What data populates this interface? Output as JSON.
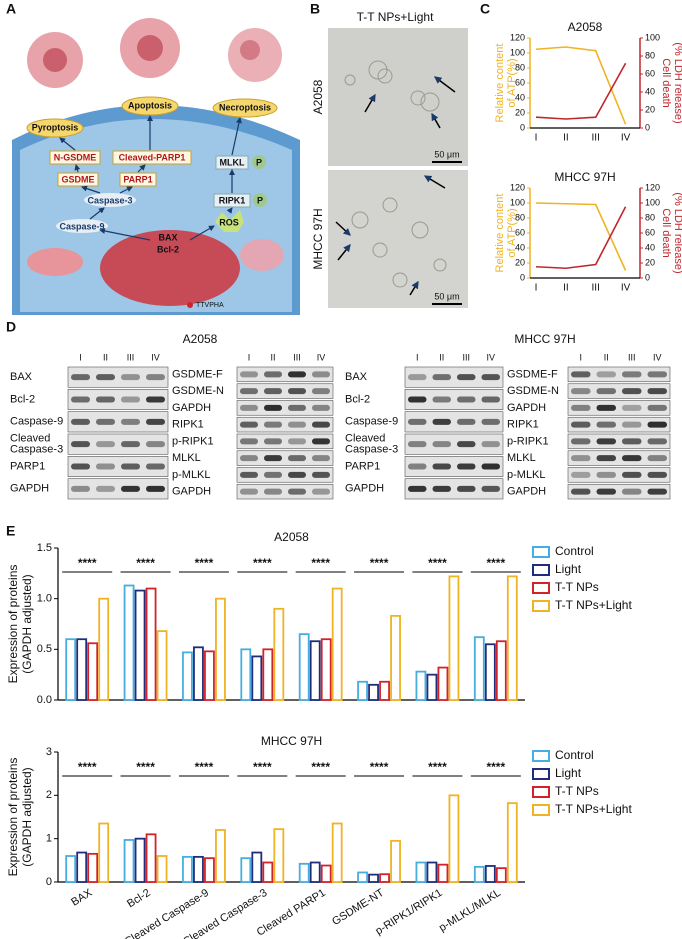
{
  "panel_labels": [
    "A",
    "B",
    "C",
    "D",
    "E"
  ],
  "diagram": {
    "outcomes": [
      "Pyroptosis",
      "Apoptosis",
      "Necroptosis"
    ],
    "nodes": [
      "N-GSDME",
      "Cleaved-PARP1",
      "MLKL",
      "P",
      "GSDME",
      "PARP1",
      "RIPK1",
      "P",
      "Caspase-3",
      "Caspase-9",
      "ROS",
      "BAX",
      "Bcl-2"
    ],
    "legend": "TTVPHA"
  },
  "microscopy": {
    "title": "T-T NPs+Light",
    "rows": [
      "A2058",
      "MHCC 97H"
    ],
    "scale_bar": "50 μm"
  },
  "blots": [
    {
      "title": "A2058",
      "lanes": [
        "I",
        "II",
        "III",
        "IV"
      ],
      "columns": [
        [
          "BAX",
          "Bcl-2",
          "Caspase-9",
          [
            "Cleaved",
            "Caspase-3"
          ],
          "PARP1",
          "GAPDH"
        ],
        [
          "GSDME-F",
          "GSDME-N",
          "GAPDH",
          "RIPK1",
          "p-RIPK1",
          "MLKL",
          "p-MLKL",
          "GAPDH"
        ]
      ]
    },
    {
      "title": "MHCC 97H",
      "lanes": [
        "I",
        "II",
        "III",
        "IV"
      ],
      "columns": [
        [
          "BAX",
          "Bcl-2",
          "Caspase-9",
          [
            "Cleaved",
            "Caspase-3"
          ],
          "PARP1",
          "GAPDH"
        ],
        [
          "GSDME-F",
          "GSDME-N",
          "GAPDH",
          "RIPK1",
          "p-RIPK1",
          "MLKL",
          "p-MLKL",
          "GAPDH"
        ]
      ]
    }
  ],
  "chart_data": [
    {
      "type": "line",
      "title": "A2058",
      "categories": [
        "I",
        "II",
        "III",
        "IV"
      ],
      "ylabel": [
        "Relative content",
        "of ATP(%)"
      ],
      "y2label": [
        "Cell death",
        "(% LDH release)"
      ],
      "ylim": [
        0,
        120
      ],
      "yticks": [
        0,
        20,
        40,
        60,
        80,
        100,
        120
      ],
      "y2lim": [
        0,
        100
      ],
      "y2ticks": [
        0,
        20,
        40,
        60,
        80,
        100
      ],
      "series": [
        {
          "color": "#f0b323",
          "values": [
            105,
            108,
            103,
            5
          ]
        },
        {
          "color": "#c0272d",
          "axis": "y2",
          "values": [
            12,
            10,
            12,
            72
          ]
        }
      ]
    },
    {
      "type": "line",
      "title": "MHCC 97H",
      "categories": [
        "I",
        "II",
        "III",
        "IV"
      ],
      "ylabel": [
        "Relative content",
        "of ATP(%)"
      ],
      "y2label": [
        "Cell death",
        "(% LDH release)"
      ],
      "ylim": [
        0,
        120
      ],
      "yticks": [
        0,
        20,
        40,
        60,
        80,
        100,
        120
      ],
      "y2lim": [
        0,
        120
      ],
      "y2ticks": [
        0,
        20,
        40,
        60,
        80,
        100,
        120
      ],
      "series": [
        {
          "color": "#f0b323",
          "values": [
            100,
            99,
            98,
            10
          ]
        },
        {
          "color": "#c0272d",
          "axis": "y2",
          "values": [
            15,
            13,
            18,
            95
          ]
        }
      ]
    },
    {
      "type": "bar",
      "title": "A2058",
      "ylabel": [
        "Expression of proteins",
        "(GAPDH adjusted)"
      ],
      "ylim": [
        0,
        1.5
      ],
      "yticks": [
        {
          "value": 0,
          "label": "0.0"
        },
        0.5,
        {
          "value": 1,
          "label": "1.0"
        },
        1.5
      ],
      "annotations": [
        "****",
        "****",
        "****",
        "****",
        "****",
        "****",
        "****",
        "****"
      ],
      "legend": "right",
      "series": [
        {
          "name": "Control",
          "color": "#45ade0",
          "values": [
            0.6,
            1.13,
            0.47,
            0.5,
            0.65,
            0.18,
            0.28,
            0.62
          ]
        },
        {
          "name": "Light",
          "color": "#1f2d7a",
          "values": [
            0.6,
            1.08,
            0.52,
            0.43,
            0.58,
            0.15,
            0.25,
            0.55
          ]
        },
        {
          "name": "T-T NPs",
          "color": "#d2232a",
          "values": [
            0.56,
            1.1,
            0.48,
            0.5,
            0.6,
            0.18,
            0.32,
            0.58
          ]
        },
        {
          "name": "T-T NPs+Light",
          "color": "#f0b323",
          "values": [
            1.0,
            0.68,
            1.0,
            0.9,
            1.1,
            0.83,
            1.22,
            1.22
          ]
        }
      ]
    },
    {
      "type": "bar",
      "title": "MHCC 97H",
      "ylabel": [
        "Expression of proteins",
        "(GAPDH adjusted)"
      ],
      "categories": [
        "BAX",
        "Bcl-2",
        "Cleaved Caspase-9",
        "Cleaved Caspase-3",
        "Cleaved PARP1",
        "GSDME-NT",
        "p-RIPK1/RIPK1",
        "p-MLKL/MLKL"
      ],
      "ylim": [
        0,
        3
      ],
      "yticks": [
        0,
        1,
        2,
        3
      ],
      "annotations": [
        "****",
        "****",
        "****",
        "****",
        "****",
        "****",
        "****",
        "****"
      ],
      "legend": "right",
      "series": [
        {
          "name": "Control",
          "color": "#45ade0",
          "values": [
            0.6,
            0.97,
            0.58,
            0.55,
            0.42,
            0.22,
            0.45,
            0.35
          ]
        },
        {
          "name": "Light",
          "color": "#1f2d7a",
          "values": [
            0.68,
            1.0,
            0.58,
            0.68,
            0.45,
            0.17,
            0.45,
            0.37
          ]
        },
        {
          "name": "T-T NPs",
          "color": "#d2232a",
          "values": [
            0.65,
            1.1,
            0.55,
            0.45,
            0.38,
            0.18,
            0.4,
            0.32
          ]
        },
        {
          "name": "T-T NPs+Light",
          "color": "#f0b323",
          "values": [
            1.35,
            0.6,
            1.2,
            1.22,
            1.35,
            0.95,
            2.0,
            1.82
          ]
        }
      ]
    }
  ]
}
